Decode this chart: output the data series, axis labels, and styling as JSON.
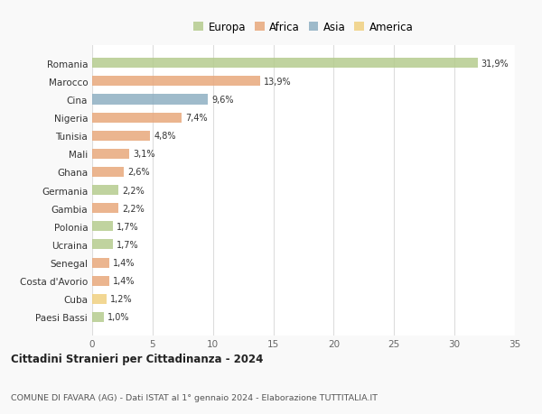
{
  "countries": [
    "Romania",
    "Marocco",
    "Cina",
    "Nigeria",
    "Tunisia",
    "Mali",
    "Ghana",
    "Germania",
    "Gambia",
    "Polonia",
    "Ucraina",
    "Senegal",
    "Costa d'Avorio",
    "Cuba",
    "Paesi Bassi"
  ],
  "values": [
    31.9,
    13.9,
    9.6,
    7.4,
    4.8,
    3.1,
    2.6,
    2.2,
    2.2,
    1.7,
    1.7,
    1.4,
    1.4,
    1.2,
    1.0
  ],
  "labels": [
    "31,9%",
    "13,9%",
    "9,6%",
    "7,4%",
    "4,8%",
    "3,1%",
    "2,6%",
    "2,2%",
    "2,2%",
    "1,7%",
    "1,7%",
    "1,4%",
    "1,4%",
    "1,2%",
    "1,0%"
  ],
  "continents": [
    "Europa",
    "Africa",
    "Asia",
    "Africa",
    "Africa",
    "Africa",
    "Africa",
    "Europa",
    "Africa",
    "Europa",
    "Europa",
    "Africa",
    "Africa",
    "America",
    "Europa"
  ],
  "colors": {
    "Europa": "#b5cc8e",
    "Africa": "#e8a87c",
    "Asia": "#8eafc2",
    "America": "#f0d080"
  },
  "xlim": [
    0,
    35
  ],
  "xticks": [
    0,
    5,
    10,
    15,
    20,
    25,
    30,
    35
  ],
  "title": "Cittadini Stranieri per Cittadinanza - 2024",
  "subtitle": "COMUNE DI FAVARA (AG) - Dati ISTAT al 1° gennaio 2024 - Elaborazione TUTTITALIA.IT",
  "plot_bg_color": "#ffffff",
  "fig_bg_color": "#f9f9f9",
  "grid_color": "#dddddd",
  "bar_height": 0.55,
  "legend_order": [
    "Europa",
    "Africa",
    "Asia",
    "America"
  ]
}
